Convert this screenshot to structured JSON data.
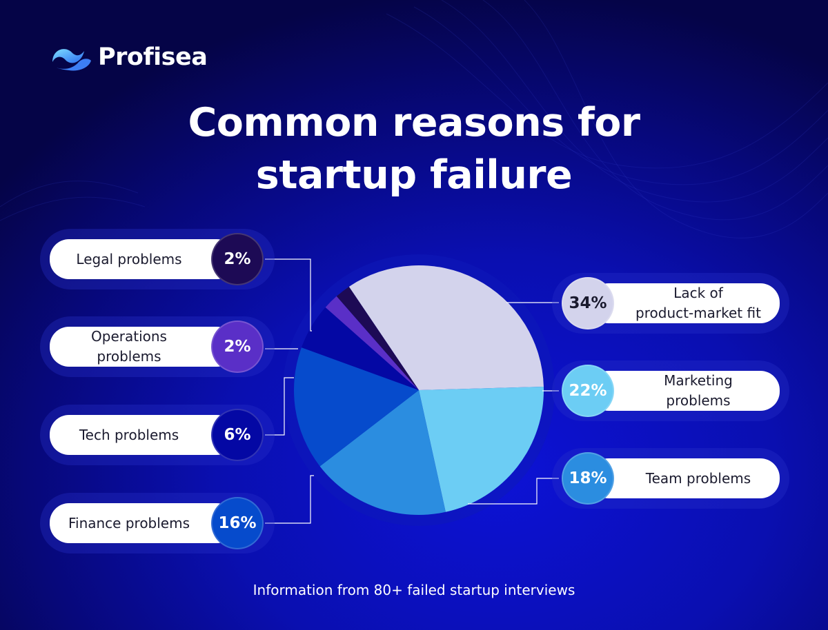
{
  "brand": {
    "name": "Profisea"
  },
  "title": {
    "line1": "Common reasons for",
    "line2": "startup failure"
  },
  "footer": "Information from 80+ failed startup interviews",
  "chart_data": {
    "type": "pie",
    "title": "Common reasons for startup failure",
    "slices": [
      {
        "label": "Lack of product-market fit",
        "label_lines": [
          "Lack of",
          "product-market fit"
        ],
        "value": 34,
        "value_label": "34%",
        "color": "#d3d3ec",
        "text_color": "#1a1a2e"
      },
      {
        "label": "Marketing problems",
        "label_lines": [
          "Marketing",
          "problems"
        ],
        "value": 22,
        "value_label": "22%",
        "color": "#6ccdf4",
        "text_color": "#ffffff"
      },
      {
        "label": "Team problems",
        "label_lines": [
          "Team problems"
        ],
        "value": 18,
        "value_label": "18%",
        "color": "#2b8de0",
        "text_color": "#ffffff"
      },
      {
        "label": "Finance problems",
        "label_lines": [
          "Finance problems"
        ],
        "value": 16,
        "value_label": "16%",
        "color": "#064bcc",
        "text_color": "#ffffff"
      },
      {
        "label": "Tech problems",
        "label_lines": [
          "Tech problems"
        ],
        "value": 6,
        "value_label": "6%",
        "color": "#0408a4",
        "text_color": "#ffffff"
      },
      {
        "label": "Operations problems",
        "label_lines": [
          "Operations",
          "problems"
        ],
        "value": 2,
        "value_label": "2%",
        "color": "#5a2fc7",
        "text_color": "#ffffff"
      },
      {
        "label": "Legal problems",
        "label_lines": [
          "Legal problems"
        ],
        "value": 2,
        "value_label": "2%",
        "color": "#1d0a55",
        "text_color": "#ffffff"
      }
    ]
  }
}
